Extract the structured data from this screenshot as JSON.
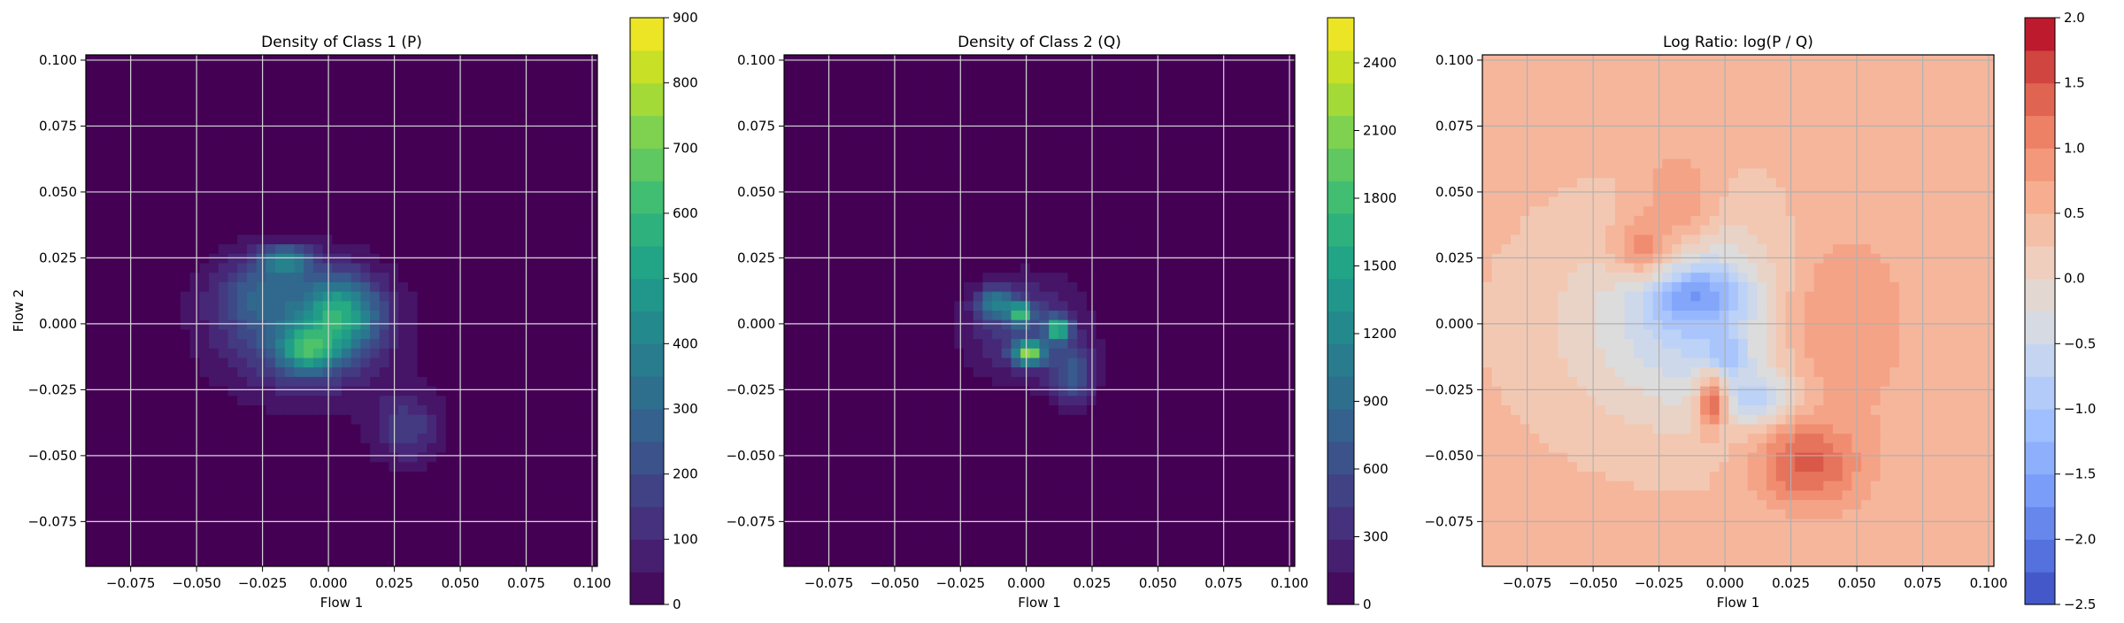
{
  "chart_data": [
    {
      "type": "heatmap",
      "title": "Density of Class 1 (P)",
      "xlabel": "Flow 1",
      "ylabel": "Flow 2",
      "xlim": [
        -0.092,
        0.102
      ],
      "ylim": [
        -0.092,
        0.102
      ],
      "x_ticks": [
        "−0.075",
        "−0.050",
        "−0.025",
        "0.000",
        "0.025",
        "0.050",
        "0.075",
        "0.100"
      ],
      "y_ticks": [
        "0.100",
        "0.075",
        "0.050",
        "0.025",
        "0.000",
        "−0.025",
        "−0.050",
        "−0.075"
      ],
      "grid": true,
      "colormap": "viridis",
      "colorbar": {
        "min": 0,
        "max": 900,
        "levels": 18,
        "ticks": [
          "0",
          "100",
          "200",
          "300",
          "400",
          "500",
          "600",
          "700",
          "800",
          "900"
        ]
      },
      "density_blobs": [
        {
          "cx": -0.01,
          "cy": -0.002,
          "sx": 0.024,
          "sy": 0.018,
          "level": 0.28
        },
        {
          "cx": 0.005,
          "cy": 0.004,
          "sx": 0.01,
          "sy": 0.01,
          "level": 0.45
        },
        {
          "cx": -0.008,
          "cy": -0.01,
          "sx": 0.008,
          "sy": 0.006,
          "level": 0.42
        },
        {
          "cx": -0.016,
          "cy": 0.024,
          "sx": 0.007,
          "sy": 0.004,
          "level": 0.36
        },
        {
          "cx": 0.03,
          "cy": -0.04,
          "sx": 0.01,
          "sy": 0.01,
          "level": 0.2
        },
        {
          "cx": -0.028,
          "cy": 0.012,
          "sx": 0.012,
          "sy": 0.01,
          "level": 0.18
        }
      ]
    },
    {
      "type": "heatmap",
      "title": "Density of Class 2 (Q)",
      "xlabel": "Flow 1",
      "ylabel": "",
      "xlim": [
        -0.092,
        0.102
      ],
      "ylim": [
        -0.092,
        0.102
      ],
      "x_ticks": [
        "−0.075",
        "−0.050",
        "−0.025",
        "0.000",
        "0.025",
        "0.050",
        "0.075",
        "0.100"
      ],
      "y_ticks": [
        "0.100",
        "0.075",
        "0.050",
        "0.025",
        "0.000",
        "−0.025",
        "−0.050",
        "−0.075"
      ],
      "grid": true,
      "colormap": "viridis",
      "colorbar": {
        "min": 0,
        "max": 2600,
        "levels": 18,
        "ticks": [
          "0",
          "300",
          "600",
          "900",
          "1200",
          "1500",
          "1800",
          "2100",
          "2400"
        ]
      },
      "density_blobs": [
        {
          "cx": 0.0,
          "cy": -0.002,
          "sx": 0.016,
          "sy": 0.014,
          "level": 0.22
        },
        {
          "cx": -0.002,
          "cy": 0.004,
          "sx": 0.003,
          "sy": 0.003,
          "level": 0.55
        },
        {
          "cx": 0.012,
          "cy": -0.002,
          "sx": 0.003,
          "sy": 0.003,
          "level": 0.62
        },
        {
          "cx": 0.001,
          "cy": -0.011,
          "sx": 0.004,
          "sy": 0.003,
          "level": 0.7
        },
        {
          "cx": -0.012,
          "cy": 0.008,
          "sx": 0.005,
          "sy": 0.004,
          "level": 0.35
        },
        {
          "cx": 0.018,
          "cy": -0.02,
          "sx": 0.006,
          "sy": 0.008,
          "level": 0.25
        }
      ]
    },
    {
      "type": "heatmap",
      "title": "Log Ratio: log(P / Q)",
      "xlabel": "Flow 1",
      "ylabel": "",
      "xlim": [
        -0.092,
        0.102
      ],
      "ylim": [
        -0.092,
        0.102
      ],
      "x_ticks": [
        "−0.075",
        "−0.050",
        "−0.025",
        "0.000",
        "0.025",
        "0.050",
        "0.075",
        "0.100"
      ],
      "y_ticks": [
        "0.100",
        "0.075",
        "0.050",
        "0.025",
        "0.000",
        "−0.025",
        "−0.050",
        "−0.075"
      ],
      "grid": true,
      "colormap": "coolwarm",
      "colorbar": {
        "min": -2.5,
        "max": 2.0,
        "levels": 18,
        "ticks": [
          "2.0",
          "1.5",
          "1.0",
          "0.5",
          "0.0",
          "−0.5",
          "−1.0",
          "−1.5",
          "−2.0",
          "−2.5"
        ]
      },
      "background_value": 0.55,
      "ratio_blobs": [
        {
          "cx": -0.008,
          "cy": 0.0,
          "sx": 0.034,
          "sy": 0.026,
          "value": -0.6
        },
        {
          "cx": -0.01,
          "cy": 0.01,
          "sx": 0.012,
          "sy": 0.008,
          "value": -1.6
        },
        {
          "cx": 0.016,
          "cy": -0.028,
          "sx": 0.01,
          "sy": 0.007,
          "value": -1.2
        },
        {
          "cx": 0.0,
          "cy": -0.012,
          "sx": 0.006,
          "sy": 0.006,
          "value": -1.2
        },
        {
          "cx": 0.032,
          "cy": -0.052,
          "sx": 0.014,
          "sy": 0.012,
          "value": 1.7
        },
        {
          "cx": -0.005,
          "cy": -0.03,
          "sx": 0.004,
          "sy": 0.008,
          "value": 1.4
        },
        {
          "cx": -0.018,
          "cy": 0.048,
          "sx": 0.01,
          "sy": 0.012,
          "value": 1.0
        },
        {
          "cx": -0.032,
          "cy": 0.03,
          "sx": 0.008,
          "sy": 0.008,
          "value": 1.1
        },
        {
          "cx": 0.045,
          "cy": 0.0,
          "sx": 0.02,
          "sy": 0.03,
          "value": 1.0
        }
      ]
    }
  ]
}
